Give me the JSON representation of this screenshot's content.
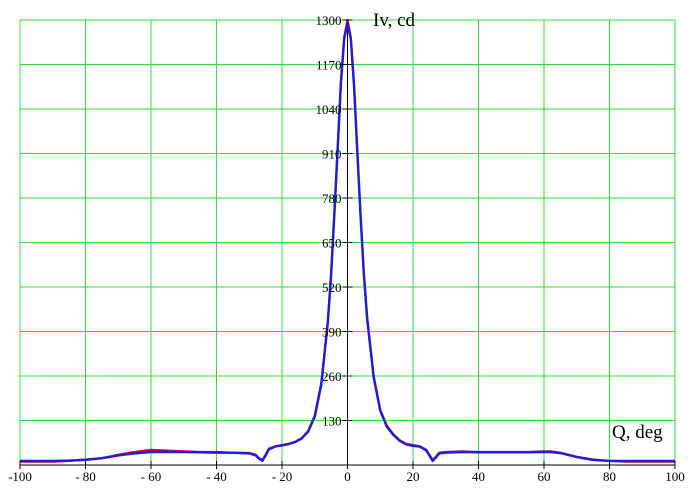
{
  "chart_data": {
    "type": "line",
    "title": "",
    "xlabel": "Q, deg",
    "ylabel": "Iv, cd",
    "xlim": [
      -100,
      100
    ],
    "ylim": [
      0,
      1300
    ],
    "x_ticks": [
      -100,
      -80,
      -60,
      -40,
      -20,
      0,
      20,
      40,
      60,
      80,
      100
    ],
    "x_tick_labels": [
      "-100",
      "- 80",
      "- 60",
      "- 40",
      "- 20",
      "0",
      "20",
      "40",
      "60",
      "80",
      "100"
    ],
    "y_ticks": [
      130,
      260,
      390,
      520,
      650,
      780,
      910,
      1040,
      1170,
      1300
    ],
    "y_tick_labels": [
      "130",
      "260",
      "390",
      "520",
      "650",
      "780",
      "910",
      "1040",
      "1170",
      "1300"
    ],
    "grid": true,
    "colors": {
      "grid": "#33dd33",
      "axis": "#000000"
    },
    "series": [
      {
        "color": "#e0001b",
        "x": [
          -100,
          -90,
          -85,
          -80,
          -75,
          -70,
          -65,
          -60,
          -55,
          -50,
          -45,
          -40,
          -35,
          -30,
          -28,
          -27,
          -26,
          -25,
          -24,
          -22,
          -20,
          -18,
          -16,
          -14,
          -12,
          -10,
          -8,
          -6,
          -5,
          -4,
          -3,
          -2,
          -1,
          0,
          1,
          2,
          3,
          4,
          5,
          6,
          8,
          10,
          12,
          14,
          16,
          18,
          20,
          22,
          24,
          25,
          26,
          27,
          28,
          30,
          35,
          40,
          45,
          50,
          55,
          60,
          62,
          65,
          70,
          75,
          80,
          85,
          90,
          95,
          100
        ],
        "y": [
          10,
          10,
          12,
          16,
          20,
          30,
          38,
          44,
          42,
          40,
          38,
          38,
          36,
          35,
          30,
          20,
          15,
          30,
          48,
          55,
          58,
          62,
          68,
          78,
          100,
          145,
          240,
          420,
          560,
          740,
          930,
          1120,
          1250,
          1300,
          1250,
          1110,
          920,
          730,
          560,
          430,
          260,
          160,
          115,
          90,
          72,
          62,
          58,
          55,
          45,
          30,
          15,
          24,
          36,
          38,
          40,
          38,
          38,
          38,
          38,
          40,
          40,
          36,
          24,
          16,
          12,
          10,
          10,
          10,
          10
        ]
      },
      {
        "color": "#1d1ddd",
        "x": [
          -100,
          -90,
          -85,
          -80,
          -75,
          -70,
          -65,
          -60,
          -55,
          -50,
          -45,
          -40,
          -35,
          -30,
          -28,
          -27,
          -26,
          -25,
          -24,
          -22,
          -20,
          -18,
          -16,
          -14,
          -12,
          -10,
          -8,
          -6,
          -5,
          -4,
          -3,
          -2,
          -1,
          0,
          1,
          2,
          3,
          4,
          5,
          6,
          8,
          10,
          12,
          14,
          16,
          18,
          20,
          22,
          24,
          25,
          26,
          27,
          28,
          30,
          35,
          40,
          45,
          50,
          55,
          60,
          62,
          65,
          70,
          75,
          80,
          85,
          90,
          95,
          100
        ],
        "y": [
          12,
          12,
          13,
          15,
          20,
          28,
          34,
          38,
          38,
          38,
          37,
          36,
          36,
          34,
          28,
          18,
          12,
          28,
          46,
          54,
          57,
          61,
          67,
          77,
          98,
          142,
          235,
          415,
          555,
          735,
          925,
          1115,
          1245,
          1290,
          1245,
          1105,
          915,
          725,
          555,
          425,
          255,
          158,
          112,
          88,
          70,
          60,
          56,
          54,
          43,
          28,
          12,
          22,
          34,
          36,
          38,
          37,
          37,
          37,
          37,
          38,
          38,
          35,
          23,
          15,
          12,
          12,
          12,
          12,
          12
        ]
      }
    ]
  }
}
